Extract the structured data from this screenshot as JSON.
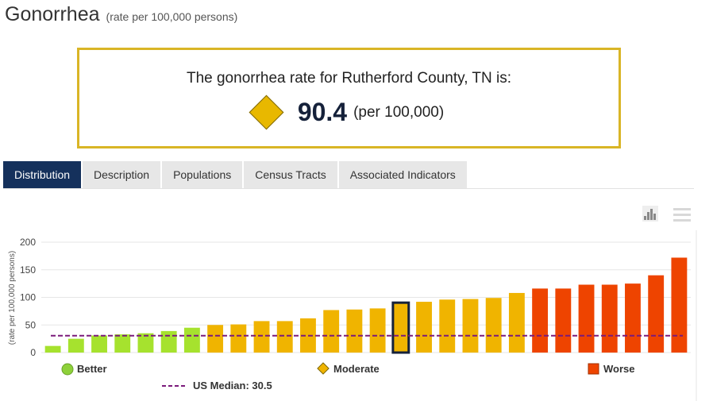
{
  "header": {
    "title": "Gonorrhea",
    "subtitle": "(rate per 100,000 persons)"
  },
  "highlight": {
    "text": "The gonorrhea rate for Rutherford County, TN is:",
    "value": "90.4",
    "unit": "(per 100,000)",
    "icon": "moderate-diamond-icon",
    "border_color": "#d9b526"
  },
  "tabs": [
    {
      "label": "Distribution",
      "active": true
    },
    {
      "label": "Description",
      "active": false
    },
    {
      "label": "Populations",
      "active": false
    },
    {
      "label": "Census Tracts",
      "active": false
    },
    {
      "label": "Associated Indicators",
      "active": false
    }
  ],
  "toolbar": {
    "chart_icon": "bar-chart-icon",
    "menu_icon": "hamburger-menu-icon"
  },
  "colors": {
    "better": "#a6e22e",
    "moderate": "#f0b400",
    "worse": "#ee4400",
    "highlight_outline": "#15213a",
    "median_line": "#7b1a7b",
    "accent": "#15315c"
  },
  "chart_data": {
    "type": "bar",
    "ylabel": "(rate per 100,000 persons)",
    "ylim": [
      0,
      200
    ],
    "yticks": [
      "0",
      "50",
      "100",
      "150",
      "200"
    ],
    "grid": true,
    "highlight_index": 15,
    "series": [
      {
        "name": "Better",
        "values": [
          12,
          25,
          31,
          33,
          35,
          39,
          45
        ]
      },
      {
        "name": "Moderate",
        "values": [
          50,
          51,
          57,
          57,
          62,
          77,
          78,
          80,
          90.4,
          92,
          96,
          97,
          99,
          108
        ]
      },
      {
        "name": "Worse",
        "values": [
          116,
          116,
          123,
          123,
          125,
          140,
          172
        ]
      }
    ],
    "reference_line": {
      "label": "US Median: 30.5",
      "value": 30.5
    },
    "legend": {
      "better": "Better",
      "moderate": "Moderate",
      "worse": "Worse",
      "median": "US Median: 30.5"
    }
  }
}
